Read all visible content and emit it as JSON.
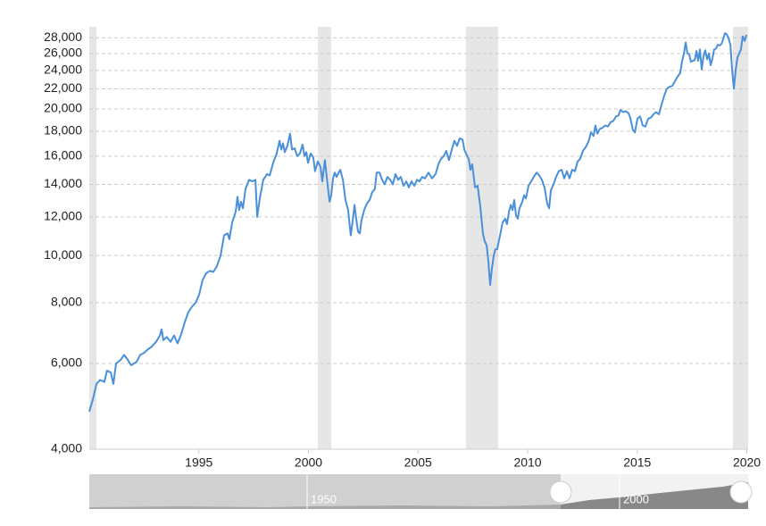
{
  "chart_data": {
    "type": "line",
    "log_scale": true,
    "grid": true,
    "color": "#4a90d9",
    "band_color": "#e6e6e6",
    "xlim": [
      1990,
      2020.06
    ],
    "ylim": [
      4000,
      29500
    ],
    "xticks": [
      1995,
      2000,
      2005,
      2010,
      2015,
      2020
    ],
    "yticks": [
      {
        "value": 4000,
        "label": "4,000"
      },
      {
        "value": 6000,
        "label": "6,000"
      },
      {
        "value": 8000,
        "label": "8,000"
      },
      {
        "value": 10000,
        "label": "10,000"
      },
      {
        "value": 12000,
        "label": "12,000"
      },
      {
        "value": 14000,
        "label": "14,000"
      },
      {
        "value": 16000,
        "label": "16,000"
      },
      {
        "value": 18000,
        "label": "18,000"
      },
      {
        "value": 20000,
        "label": "20,000"
      },
      {
        "value": 22000,
        "label": "22,000"
      },
      {
        "value": 24000,
        "label": "24,000"
      },
      {
        "value": 26000,
        "label": "26,000"
      },
      {
        "value": 28000,
        "label": "28,000"
      }
    ],
    "recessions": [
      [
        1990.0,
        1990.33
      ],
      [
        2000.43,
        2001.04
      ],
      [
        2007.19,
        2008.65
      ],
      [
        2019.37,
        2020.06
      ]
    ],
    "x": [
      1990.0,
      1990.16,
      1990.33,
      1990.49,
      1990.69,
      1990.81,
      1990.98,
      1991.1,
      1991.22,
      1991.43,
      1991.59,
      1991.71,
      1991.91,
      1992.16,
      1992.32,
      1992.48,
      1992.65,
      1992.85,
      1993.05,
      1993.22,
      1993.3,
      1993.38,
      1993.54,
      1993.71,
      1993.87,
      1994.03,
      1994.2,
      1994.36,
      1994.52,
      1994.68,
      1994.85,
      1995.01,
      1995.17,
      1995.34,
      1995.5,
      1995.66,
      1995.82,
      1995.99,
      1996.15,
      1996.31,
      1996.39,
      1996.52,
      1996.68,
      1996.76,
      1996.84,
      1996.92,
      1997.01,
      1997.13,
      1997.29,
      1997.45,
      1997.58,
      1997.66,
      1997.78,
      1997.94,
      1998.11,
      1998.23,
      1998.39,
      1998.55,
      1998.68,
      1998.76,
      1998.84,
      1998.92,
      1999.04,
      1999.16,
      1999.25,
      1999.37,
      1999.49,
      1999.61,
      1999.73,
      1999.82,
      1999.9,
      1999.98,
      2000.1,
      2000.22,
      2000.3,
      2000.43,
      2000.55,
      2000.63,
      2000.75,
      2000.87,
      2000.96,
      2001.04,
      2001.12,
      2001.2,
      2001.28,
      2001.45,
      2001.57,
      2001.69,
      2001.81,
      2001.93,
      2002.02,
      2002.1,
      2002.18,
      2002.26,
      2002.34,
      2002.42,
      2002.54,
      2002.67,
      2002.79,
      2002.91,
      2003.03,
      2003.11,
      2003.24,
      2003.36,
      2003.48,
      2003.6,
      2003.73,
      2003.85,
      2003.97,
      2004.09,
      2004.21,
      2004.34,
      2004.46,
      2004.58,
      2004.7,
      2004.83,
      2004.95,
      2005.07,
      2005.19,
      2005.31,
      2005.48,
      2005.64,
      2005.8,
      2005.93,
      2006.05,
      2006.17,
      2006.29,
      2006.41,
      2006.54,
      2006.66,
      2006.78,
      2006.9,
      2007.03,
      2007.11,
      2007.19,
      2007.31,
      2007.39,
      2007.47,
      2007.6,
      2007.72,
      2007.84,
      2007.96,
      2008.04,
      2008.13,
      2008.21,
      2008.29,
      2008.37,
      2008.45,
      2008.53,
      2008.61,
      2008.74,
      2008.86,
      2008.98,
      2009.06,
      2009.15,
      2009.23,
      2009.31,
      2009.39,
      2009.47,
      2009.55,
      2009.63,
      2009.76,
      2009.84,
      2009.92,
      2010.04,
      2010.16,
      2010.28,
      2010.41,
      2010.53,
      2010.65,
      2010.77,
      2010.89,
      2010.98,
      2011.06,
      2011.18,
      2011.3,
      2011.42,
      2011.55,
      2011.67,
      2011.79,
      2011.91,
      2012.03,
      2012.16,
      2012.28,
      2012.4,
      2012.52,
      2012.65,
      2012.77,
      2012.89,
      2013.01,
      2013.09,
      2013.18,
      2013.3,
      2013.42,
      2013.54,
      2013.66,
      2013.79,
      2013.91,
      2014.03,
      2014.15,
      2014.23,
      2014.36,
      2014.48,
      2014.6,
      2014.68,
      2014.8,
      2014.89,
      2015.01,
      2015.13,
      2015.25,
      2015.37,
      2015.5,
      2015.62,
      2015.74,
      2015.86,
      2015.99,
      2016.11,
      2016.23,
      2016.35,
      2016.47,
      2016.6,
      2016.72,
      2016.84,
      2016.96,
      2017.04,
      2017.13,
      2017.21,
      2017.29,
      2017.37,
      2017.45,
      2017.53,
      2017.62,
      2017.7,
      2017.78,
      2017.86,
      2017.94,
      2018.02,
      2018.1,
      2018.19,
      2018.27,
      2018.35,
      2018.43,
      2018.51,
      2018.59,
      2018.67,
      2018.76,
      2018.84,
      2018.92,
      2019.0,
      2019.08,
      2019.16,
      2019.25,
      2019.33,
      2019.41,
      2019.49,
      2019.57,
      2019.65,
      2019.73,
      2019.81,
      2019.9,
      2019.98
    ],
    "values": [
      4780,
      5050,
      5450,
      5550,
      5500,
      5800,
      5750,
      5450,
      6000,
      6100,
      6250,
      6150,
      5950,
      6050,
      6250,
      6300,
      6400,
      6500,
      6650,
      6850,
      7050,
      6700,
      6800,
      6650,
      6850,
      6600,
      6900,
      7300,
      7650,
      7850,
      8000,
      8300,
      8900,
      9200,
      9300,
      9250,
      9500,
      10000,
      11000,
      11100,
      10800,
      11700,
      12300,
      13200,
      12400,
      12900,
      12500,
      13700,
      14300,
      14200,
      14300,
      12000,
      13100,
      14300,
      14700,
      14600,
      15500,
      16200,
      17200,
      16500,
      17000,
      16300,
      16800,
      17800,
      16500,
      16600,
      16000,
      16200,
      16900,
      16000,
      16300,
      15500,
      16200,
      15900,
      14900,
      15600,
      15200,
      14200,
      15700,
      14000,
      12900,
      13300,
      14400,
      14800,
      14500,
      15000,
      14300,
      13000,
      12400,
      11000,
      11800,
      12700,
      11900,
      11200,
      11100,
      11800,
      12400,
      12800,
      13000,
      13500,
      13700,
      14800,
      14800,
      14300,
      14000,
      14500,
      14300,
      14000,
      14700,
      14300,
      14500,
      13900,
      14200,
      13800,
      14200,
      13900,
      14300,
      14200,
      14500,
      14400,
      14800,
      14400,
      14700,
      15400,
      15800,
      16000,
      16400,
      15700,
      16500,
      17200,
      16800,
      17400,
      17300,
      16500,
      16200,
      15800,
      15000,
      15400,
      13800,
      13900,
      12600,
      11100,
      10700,
      10500,
      9700,
      8700,
      9400,
      10000,
      10300,
      10300,
      11000,
      11700,
      11900,
      11600,
      12300,
      12700,
      12400,
      13000,
      12100,
      11900,
      12500,
      12900,
      13300,
      13100,
      13900,
      14200,
      14500,
      14800,
      14600,
      14300,
      13800,
      12800,
      12500,
      13600,
      14000,
      14500,
      14900,
      15000,
      14400,
      14900,
      14400,
      15000,
      14900,
      15600,
      15800,
      16400,
      16700,
      17100,
      17900,
      17600,
      18500,
      17800,
      18200,
      18300,
      18500,
      18400,
      18800,
      18900,
      19300,
      19400,
      19900,
      19700,
      19800,
      19600,
      19200,
      18100,
      17900,
      19100,
      19300,
      18500,
      18400,
      19100,
      19200,
      19500,
      19700,
      19500,
      20400,
      21300,
      22000,
      22200,
      22300,
      22800,
      23300,
      23700,
      25000,
      26000,
      27400,
      26000,
      25900,
      25000,
      25100,
      25200,
      26300,
      25100,
      26500,
      24100,
      25600,
      26400,
      25300,
      26000,
      24600,
      25400,
      26500,
      26600,
      27100,
      27000,
      27200,
      27800,
      28600,
      28500,
      28000,
      27100,
      24000,
      22000,
      24000,
      25500,
      26000,
      26500,
      28200,
      27600,
      28400
    ]
  },
  "navigator": {
    "labels": [
      "1950",
      "2000"
    ]
  }
}
